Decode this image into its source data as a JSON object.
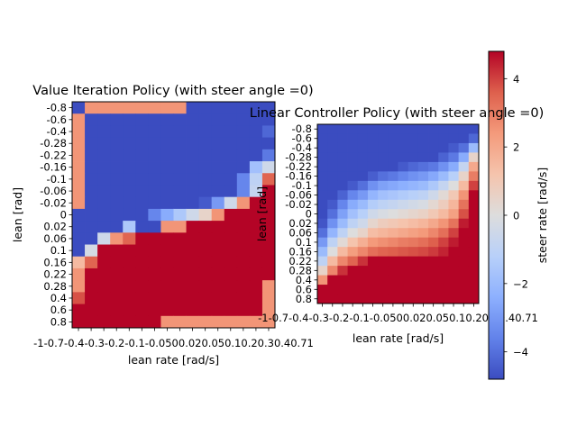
{
  "chart_data": [
    {
      "type": "heatmap",
      "title": "Value Iteration Policy (with steer angle =0)",
      "xlabel": "lean rate [rad/s]",
      "ylabel": "lean [rad]",
      "yticks": [
        "-0.8",
        "-0.6",
        "-0.4",
        "-0.28",
        "-0.22",
        "-0.16",
        "-0.1",
        "-0.06",
        "-0.02",
        "0",
        "0.02",
        "0.06",
        "0.1",
        "0.16",
        "0.22",
        "0.28",
        "0.4",
        "0.6",
        "0.8"
      ],
      "xticks": [
        "-1",
        "-0.7",
        "-0.4",
        "-0.3",
        "-0.2",
        "-0.1",
        "-0.05",
        "0",
        "0.02",
        "0.05",
        "0.1",
        "0.2",
        "0.3",
        "0.4",
        "0.7",
        "1"
      ],
      "xtick_display": "-1-0.7-0.4-0.3-0.2-0.1-0.0500.020.050.10.20.30.40.71",
      "grid": false,
      "values": [
        [
          -4.8,
          2.5,
          2.5,
          2.5,
          2.5,
          2.5,
          2.5,
          2.5,
          2.5,
          -4.8,
          -4.8,
          -4.8,
          -4.8,
          -4.8,
          -4.8,
          -4.8
        ],
        [
          2.5,
          -4.8,
          -4.8,
          -4.8,
          -4.8,
          -4.8,
          -4.8,
          -4.8,
          -4.8,
          -4.8,
          -4.8,
          -4.8,
          -4.8,
          -4.8,
          -4.8,
          -4.8
        ],
        [
          2.5,
          -4.8,
          -4.8,
          -4.8,
          -4.8,
          -4.8,
          -4.8,
          -4.8,
          -4.8,
          -4.8,
          -4.8,
          -4.8,
          -4.8,
          -4.8,
          -4.8,
          -4.2
        ],
        [
          2.5,
          -4.8,
          -4.8,
          -4.8,
          -4.8,
          -4.8,
          -4.8,
          -4.8,
          -4.8,
          -4.8,
          -4.8,
          -4.8,
          -4.8,
          -4.8,
          -4.8,
          -4.8
        ],
        [
          2.5,
          -4.8,
          -4.8,
          -4.8,
          -4.8,
          -4.8,
          -4.8,
          -4.8,
          -4.8,
          -4.8,
          -4.8,
          -4.8,
          -4.8,
          -4.8,
          -4.8,
          -3.8
        ],
        [
          2.5,
          -4.8,
          -4.8,
          -4.8,
          -4.8,
          -4.8,
          -4.8,
          -4.8,
          -4.8,
          -4.8,
          -4.8,
          -4.8,
          -4.8,
          -4.8,
          -1.8,
          -0.5
        ],
        [
          2.5,
          -4.8,
          -4.8,
          -4.8,
          -4.8,
          -4.8,
          -4.8,
          -4.8,
          -4.8,
          -4.8,
          -4.8,
          -4.8,
          -4.8,
          -3.5,
          -1.0,
          3.5
        ],
        [
          2.5,
          -4.8,
          -4.8,
          -4.8,
          -4.8,
          -4.8,
          -4.8,
          -4.8,
          -4.8,
          -4.8,
          -4.8,
          -4.8,
          -4.8,
          -3.5,
          -0.8,
          4.8
        ],
        [
          2.5,
          -4.8,
          -4.8,
          -4.8,
          -4.8,
          -4.8,
          -4.8,
          -4.8,
          -4.8,
          -4.8,
          -4.5,
          -3.0,
          -0.5,
          2.5,
          4.8,
          4.8
        ],
        [
          -4.8,
          -4.8,
          -4.8,
          -4.8,
          -4.8,
          -4.8,
          -3.5,
          -2.5,
          -1.5,
          -0.5,
          0.5,
          2.5,
          4.8,
          4.8,
          4.8,
          4.8
        ],
        [
          -4.8,
          -4.8,
          -4.8,
          -4.8,
          -1.5,
          -4.8,
          -4.8,
          2.5,
          2.5,
          4.8,
          4.8,
          4.8,
          4.8,
          4.8,
          4.8,
          4.8
        ],
        [
          -4.8,
          -4.8,
          -0.5,
          2.5,
          3.5,
          4.8,
          4.8,
          4.8,
          4.8,
          4.8,
          4.8,
          4.8,
          4.8,
          4.8,
          4.8,
          4.8
        ],
        [
          -4.8,
          -0.3,
          4.8,
          4.8,
          4.8,
          4.8,
          4.8,
          4.8,
          4.8,
          4.8,
          4.8,
          4.8,
          4.8,
          4.8,
          4.8,
          4.8
        ],
        [
          1.5,
          3.5,
          4.8,
          4.8,
          4.8,
          4.8,
          4.8,
          4.8,
          4.8,
          4.8,
          4.8,
          4.8,
          4.8,
          4.8,
          4.8,
          4.8
        ],
        [
          2.5,
          4.8,
          4.8,
          4.8,
          4.8,
          4.8,
          4.8,
          4.8,
          4.8,
          4.8,
          4.8,
          4.8,
          4.8,
          4.8,
          4.8,
          4.8
        ],
        [
          2.5,
          4.8,
          4.8,
          4.8,
          4.8,
          4.8,
          4.8,
          4.8,
          4.8,
          4.8,
          4.8,
          4.8,
          4.8,
          4.8,
          4.8,
          2.5
        ],
        [
          3.8,
          4.8,
          4.8,
          4.8,
          4.8,
          4.8,
          4.8,
          4.8,
          4.8,
          4.8,
          4.8,
          4.8,
          4.8,
          4.8,
          4.8,
          2.5
        ],
        [
          4.8,
          4.8,
          4.8,
          4.8,
          4.8,
          4.8,
          4.8,
          4.8,
          4.8,
          4.8,
          4.8,
          4.8,
          4.8,
          4.8,
          4.8,
          2.5
        ],
        [
          4.8,
          4.8,
          4.8,
          4.8,
          4.8,
          4.8,
          4.8,
          2.5,
          2.5,
          2.5,
          2.5,
          2.5,
          2.5,
          2.5,
          2.5,
          2.5
        ]
      ]
    },
    {
      "type": "heatmap",
      "title": "Linear Controller Policy (with steer angle =0)",
      "xlabel": "lean rate [rad/s]",
      "ylabel": "lean [rad]",
      "yticks": [
        "-0.8",
        "-0.6",
        "-0.4",
        "-0.28",
        "-0.22",
        "-0.16",
        "-0.1",
        "-0.06",
        "-0.02",
        "0",
        "0.02",
        "0.06",
        "0.1",
        "0.16",
        "0.22",
        "0.28",
        "0.4",
        "0.6",
        "0.8"
      ],
      "xticks": [
        "-1",
        "-0.7",
        "-0.4",
        "-0.3",
        "-0.2",
        "-0.1",
        "-0.05",
        "0",
        "0.02",
        "0.05",
        "0.1",
        "0.2",
        "0.3",
        "0.4",
        "0.7",
        "1"
      ],
      "xtick_display": "-1-0.7-0.4-0.3-0.2-0.1-0.0500.020.050.10.20.30.40.71",
      "grid": false,
      "values": [
        [
          -4.8,
          -4.8,
          -4.8,
          -4.8,
          -4.8,
          -4.8,
          -4.8,
          -4.8,
          -4.8,
          -4.8,
          -4.8,
          -4.8,
          -4.8,
          -4.8,
          -4.8,
          -4.8
        ],
        [
          -4.8,
          -4.8,
          -4.8,
          -4.8,
          -4.8,
          -4.8,
          -4.8,
          -4.8,
          -4.8,
          -4.8,
          -4.8,
          -4.8,
          -4.8,
          -4.8,
          -4.8,
          -4.2
        ],
        [
          -4.8,
          -4.8,
          -4.8,
          -4.8,
          -4.8,
          -4.8,
          -4.8,
          -4.8,
          -4.8,
          -4.8,
          -4.8,
          -4.8,
          -4.8,
          -4.5,
          -4.0,
          -2.0
        ],
        [
          -4.8,
          -4.8,
          -4.8,
          -4.8,
          -4.8,
          -4.8,
          -4.8,
          -4.8,
          -4.8,
          -4.8,
          -4.8,
          -4.8,
          -4.3,
          -3.8,
          -2.5,
          0.5
        ],
        [
          -4.8,
          -4.8,
          -4.8,
          -4.8,
          -4.8,
          -4.8,
          -4.8,
          -4.8,
          -4.5,
          -4.2,
          -4.0,
          -3.8,
          -3.2,
          -2.5,
          -0.8,
          2.0
        ],
        [
          -4.8,
          -4.8,
          -4.8,
          -4.8,
          -4.8,
          -4.4,
          -4.0,
          -3.8,
          -3.5,
          -3.2,
          -3.0,
          -2.6,
          -2.0,
          -1.2,
          0.5,
          3.0
        ],
        [
          -4.8,
          -4.8,
          -4.8,
          -4.5,
          -4.0,
          -3.2,
          -2.8,
          -2.6,
          -2.4,
          -2.2,
          -2.0,
          -1.5,
          -0.8,
          0.0,
          1.5,
          4.0
        ],
        [
          -4.8,
          -4.8,
          -4.3,
          -3.5,
          -3.0,
          -2.2,
          -1.8,
          -1.6,
          -1.4,
          -1.2,
          -1.0,
          -0.5,
          0.2,
          1.0,
          2.5,
          4.8
        ],
        [
          -4.8,
          -4.5,
          -3.5,
          -2.5,
          -2.0,
          -1.3,
          -1.0,
          -0.8,
          -0.6,
          -0.4,
          -0.2,
          0.3,
          0.8,
          1.6,
          3.2,
          4.8
        ],
        [
          -4.8,
          -4.0,
          -2.8,
          -1.8,
          -1.2,
          -0.5,
          -0.2,
          0.0,
          0.2,
          0.4,
          0.6,
          1.0,
          1.5,
          2.2,
          3.8,
          4.8
        ],
        [
          -4.6,
          -3.2,
          -2.0,
          -1.0,
          -0.5,
          0.4,
          0.8,
          1.0,
          1.2,
          1.4,
          1.6,
          2.0,
          2.5,
          3.2,
          4.5,
          4.8
        ],
        [
          -4.0,
          -2.2,
          -1.0,
          0.0,
          0.5,
          1.4,
          1.6,
          1.8,
          2.0,
          2.2,
          2.4,
          2.8,
          3.3,
          4.0,
          4.8,
          4.8
        ],
        [
          -3.0,
          -1.0,
          0.2,
          1.2,
          1.8,
          2.4,
          2.6,
          2.8,
          3.0,
          3.1,
          3.3,
          3.6,
          4.0,
          4.5,
          4.8,
          4.8
        ],
        [
          -2.0,
          0.0,
          1.5,
          2.3,
          2.8,
          3.3,
          3.5,
          3.6,
          3.7,
          3.8,
          3.9,
          4.1,
          4.4,
          4.8,
          4.8,
          4.8
        ],
        [
          -1.0,
          1.5,
          2.8,
          3.5,
          4.2,
          4.8,
          4.8,
          4.8,
          4.8,
          4.8,
          4.8,
          4.8,
          4.8,
          4.8,
          4.8,
          4.8
        ],
        [
          0.5,
          2.8,
          4.2,
          4.8,
          4.8,
          4.8,
          4.8,
          4.8,
          4.8,
          4.8,
          4.8,
          4.8,
          4.8,
          4.8,
          4.8,
          4.8
        ],
        [
          2.5,
          4.8,
          4.8,
          4.8,
          4.8,
          4.8,
          4.8,
          4.8,
          4.8,
          4.8,
          4.8,
          4.8,
          4.8,
          4.8,
          4.8,
          4.8
        ],
        [
          4.8,
          4.8,
          4.8,
          4.8,
          4.8,
          4.8,
          4.8,
          4.8,
          4.8,
          4.8,
          4.8,
          4.8,
          4.8,
          4.8,
          4.8,
          4.8
        ],
        [
          4.8,
          4.8,
          4.8,
          4.8,
          4.8,
          4.8,
          4.8,
          4.8,
          4.8,
          4.8,
          4.8,
          4.8,
          4.8,
          4.8,
          4.8,
          4.8
        ]
      ]
    }
  ],
  "colorbar": {
    "label": "steer rate [rad/s]",
    "colormap": "coolwarm",
    "vmin": -4.8,
    "vmax": 4.8,
    "ticks": [
      -4,
      -2,
      0,
      2,
      4
    ],
    "tick_labels": [
      "−4",
      "−2",
      "0",
      "2",
      "4"
    ]
  }
}
